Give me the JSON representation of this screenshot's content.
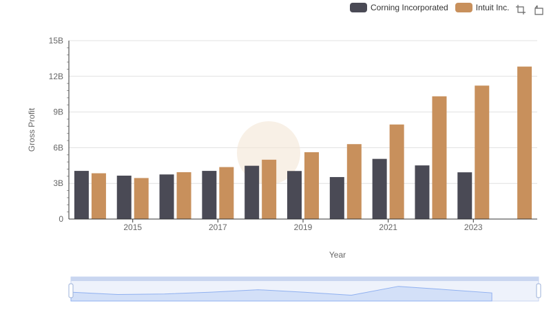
{
  "legend": {
    "items": [
      {
        "label": "Corning Incorporated",
        "color": "#4a4a55"
      },
      {
        "label": "Intuit Inc.",
        "color": "#c8905c"
      }
    ]
  },
  "toolbox": {
    "icons": [
      "zoom-icon",
      "zoom-reset-icon"
    ]
  },
  "colors": {
    "gridline": "#e0e0e0",
    "axis_text": "#666666",
    "slider_fill": "#d3e0f8",
    "slider_line": "#8fb0f0"
  },
  "chart_data": {
    "type": "bar",
    "title": "",
    "xlabel": "Year",
    "ylabel": "Gross Profit",
    "ylim": [
      0,
      15000000000
    ],
    "y_ticks": [
      0,
      3000000000,
      6000000000,
      9000000000,
      12000000000,
      15000000000
    ],
    "y_tick_labels": [
      "0",
      "3B",
      "6B",
      "9B",
      "12B",
      "15B"
    ],
    "x_tick_labels": [
      "2015",
      "2017",
      "2019",
      "2021",
      "2023"
    ],
    "categories": [
      "2014",
      "2015",
      "2016",
      "2017",
      "2018",
      "2019",
      "2020",
      "2021",
      "2022",
      "2023",
      "2024"
    ],
    "grid": true,
    "legend_position": "top-right",
    "series": [
      {
        "name": "Corning Incorporated",
        "color": "#4a4a55",
        "values": [
          4050000000,
          3650000000,
          3750000000,
          4050000000,
          4480000000,
          4040000000,
          3530000000,
          5060000000,
          4510000000,
          3930000000,
          null
        ]
      },
      {
        "name": "Intuit Inc.",
        "color": "#c8905c",
        "values": [
          3850000000,
          3450000000,
          3940000000,
          4370000000,
          4990000000,
          5620000000,
          6300000000,
          7950000000,
          10320000000,
          11220000000,
          12820000000
        ]
      }
    ]
  }
}
